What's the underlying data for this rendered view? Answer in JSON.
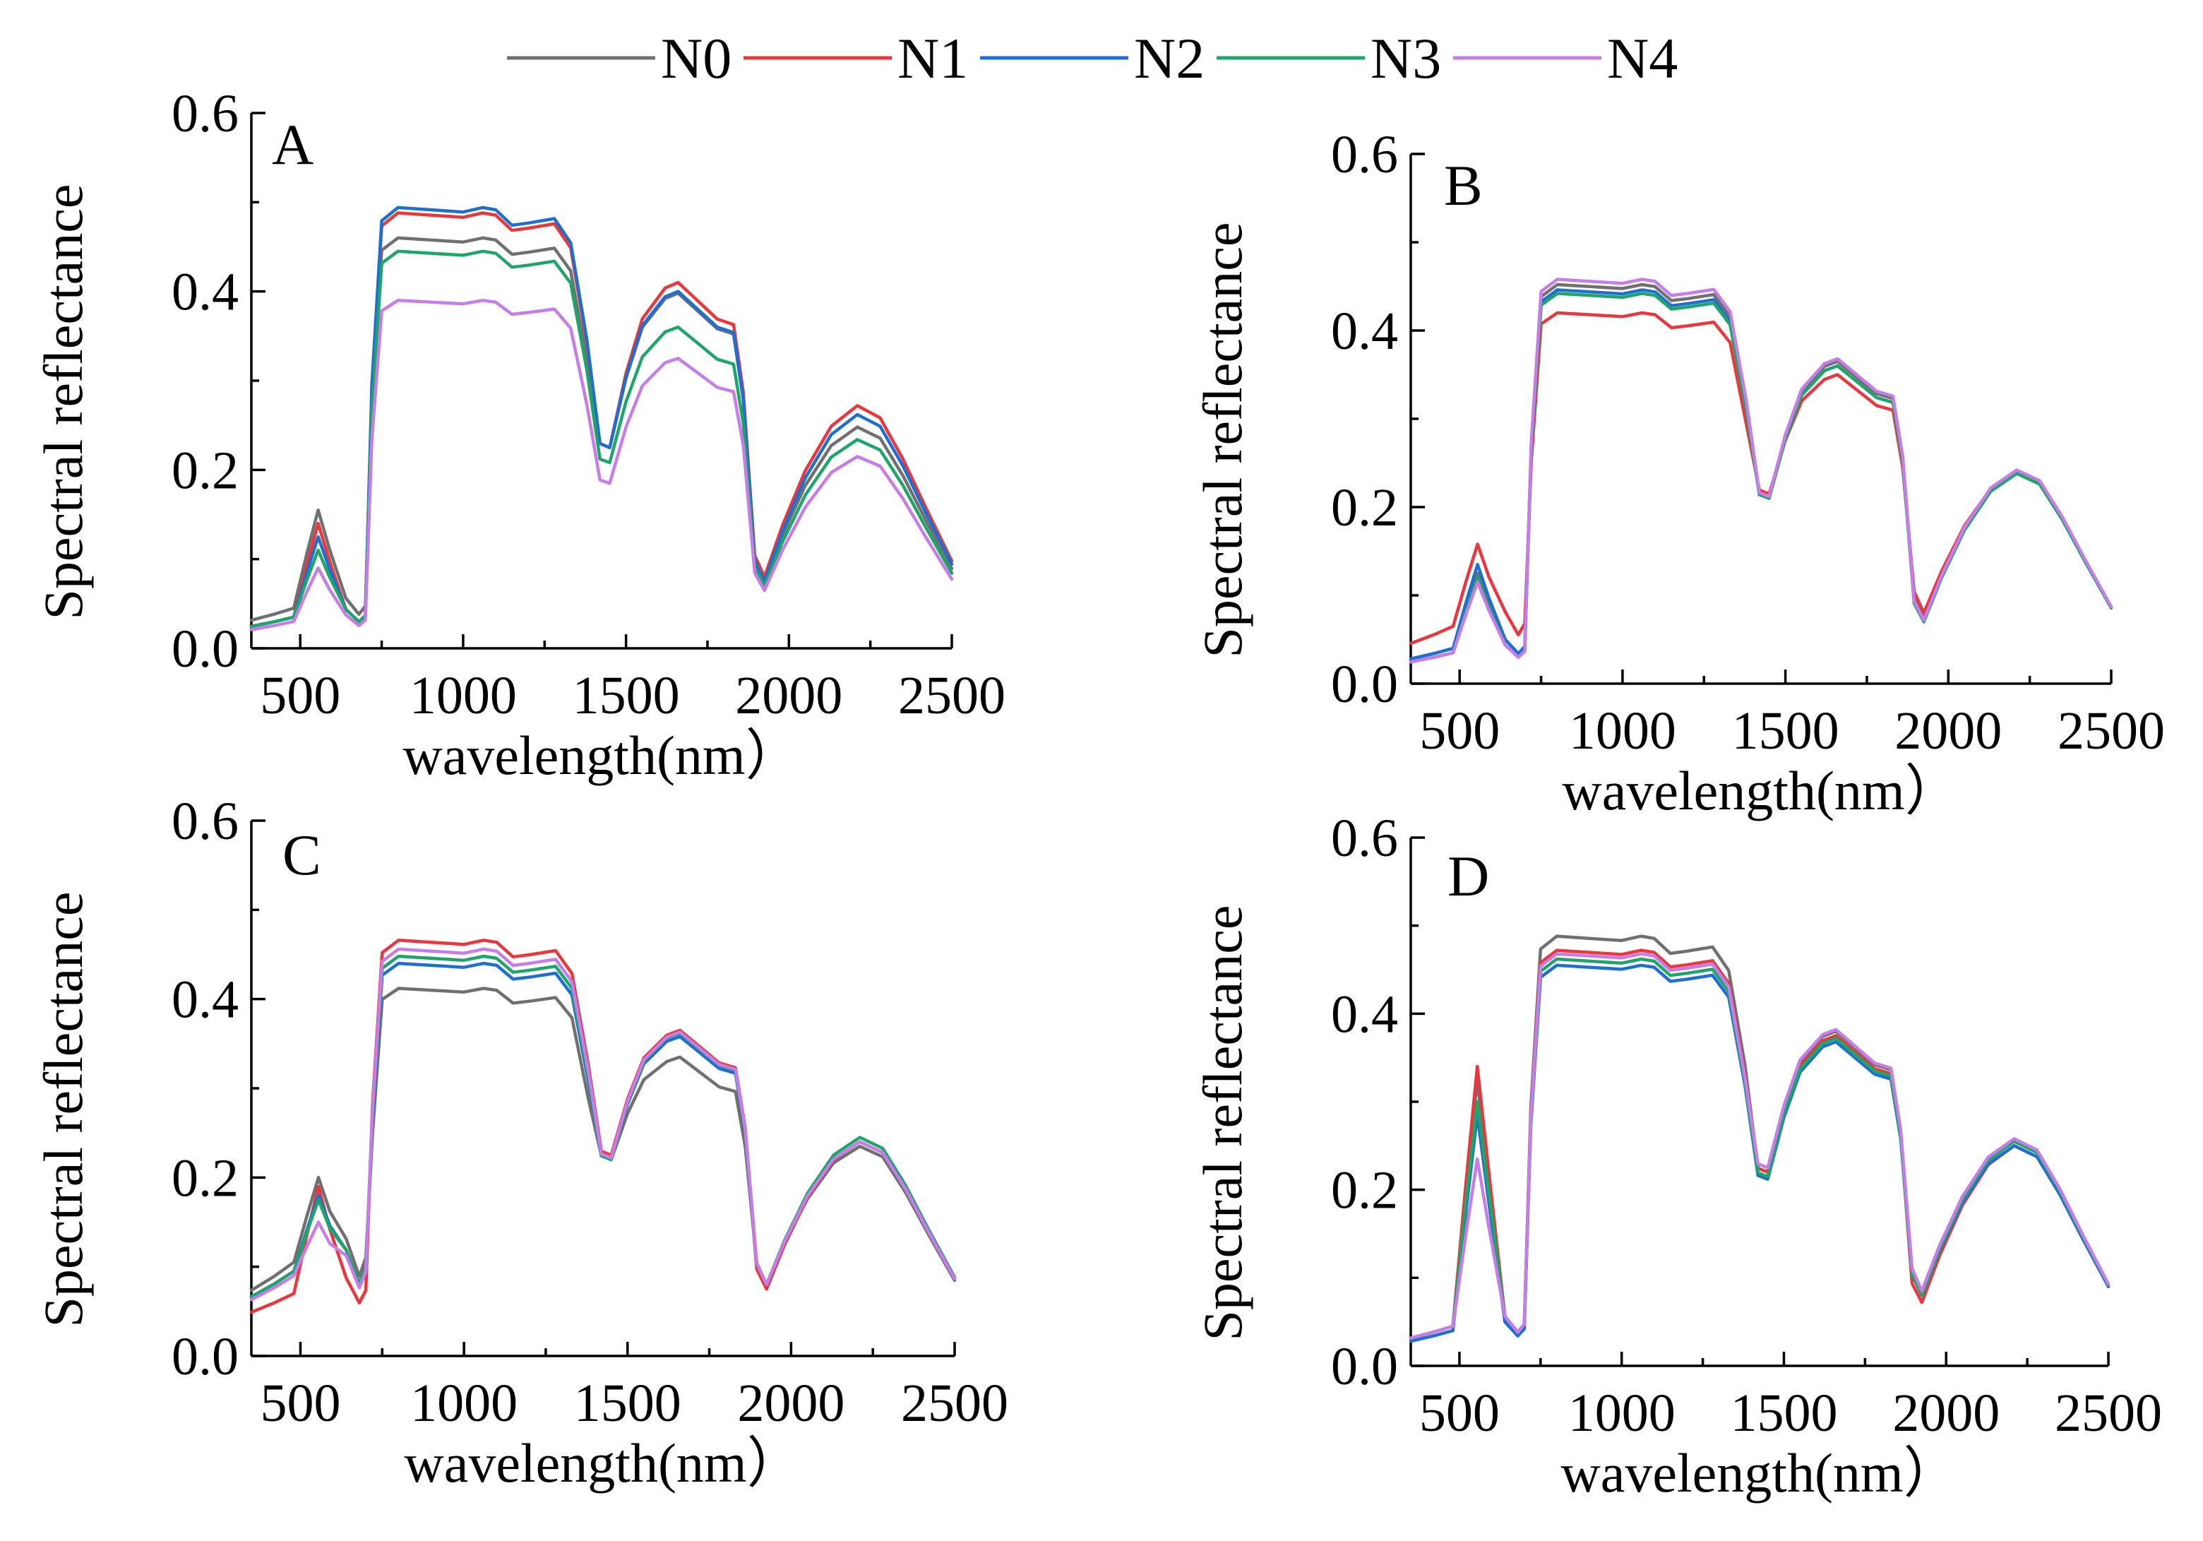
{
  "chart_data": {
    "type": "line",
    "legend": [
      {
        "name": "N0",
        "color": "#707070"
      },
      {
        "name": "N1",
        "color": "#e8383d"
      },
      {
        "name": "N2",
        "color": "#1f6fd0"
      },
      {
        "name": "N3",
        "color": "#1fa46a"
      },
      {
        "name": "N4",
        "color": "#c77de8"
      }
    ],
    "xlabel": "wavelength(nm）",
    "ylabel": "Spectral reflectance",
    "xlim": [
      350,
      2500
    ],
    "ylim": [
      0,
      0.6
    ],
    "xticks": [
      500,
      1000,
      1500,
      2000,
      2500
    ],
    "yticks": [
      0.0,
      0.2,
      0.4,
      0.6
    ],
    "ytick_labels": [
      "0.0",
      "0.2",
      "0.4",
      "0.6"
    ],
    "panels": [
      {
        "label": "A",
        "series": [
          {
            "name": "N0",
            "plateau": 0.46,
            "green": 0.155,
            "visible": 0.045,
            "swir1": 0.398,
            "swir2": 0.248,
            "trough1": 0.225,
            "trough2": 0.075
          },
          {
            "name": "N1",
            "plateau": 0.488,
            "green": 0.14,
            "visible": 0.035,
            "swir1": 0.41,
            "swir2": 0.272,
            "trough1": 0.225,
            "trough2": 0.08
          },
          {
            "name": "N2",
            "plateau": 0.494,
            "green": 0.125,
            "visible": 0.035,
            "swir1": 0.4,
            "swir2": 0.262,
            "trough1": 0.225,
            "trough2": 0.075
          },
          {
            "name": "N3",
            "plateau": 0.445,
            "green": 0.11,
            "visible": 0.035,
            "swir1": 0.36,
            "swir2": 0.234,
            "trough1": 0.208,
            "trough2": 0.07
          },
          {
            "name": "N4",
            "plateau": 0.39,
            "green": 0.09,
            "visible": 0.03,
            "swir1": 0.325,
            "swir2": 0.215,
            "trough1": 0.185,
            "trough2": 0.065
          }
        ]
      },
      {
        "label": "B",
        "series": [
          {
            "name": "N0",
            "plateau": 0.452,
            "green": 0.125,
            "visible": 0.04,
            "swir1": 0.365,
            "swir2": 0.24,
            "trough1": 0.21,
            "trough2": 0.075
          },
          {
            "name": "N1",
            "plateau": 0.42,
            "green": 0.158,
            "visible": 0.065,
            "swir1": 0.35,
            "swir2": 0.24,
            "trough1": 0.215,
            "trough2": 0.08
          },
          {
            "name": "N2",
            "plateau": 0.446,
            "green": 0.135,
            "visible": 0.04,
            "swir1": 0.36,
            "swir2": 0.24,
            "trough1": 0.21,
            "trough2": 0.072
          },
          {
            "name": "N3",
            "plateau": 0.442,
            "green": 0.12,
            "visible": 0.035,
            "swir1": 0.36,
            "swir2": 0.238,
            "trough1": 0.21,
            "trough2": 0.07
          },
          {
            "name": "N4",
            "plateau": 0.458,
            "green": 0.115,
            "visible": 0.035,
            "swir1": 0.368,
            "swir2": 0.242,
            "trough1": 0.212,
            "trough2": 0.072
          }
        ]
      },
      {
        "label": "C",
        "series": [
          {
            "name": "N0",
            "plateau": 0.412,
            "green": 0.2,
            "visible": 0.105,
            "swir1": 0.335,
            "swir2": 0.235,
            "trough1": 0.22,
            "trough2": 0.08
          },
          {
            "name": "N1",
            "plateau": 0.466,
            "green": 0.19,
            "visible": 0.07,
            "swir1": 0.365,
            "swir2": 0.24,
            "trough1": 0.225,
            "trough2": 0.075
          },
          {
            "name": "N2",
            "plateau": 0.44,
            "green": 0.18,
            "visible": 0.095,
            "swir1": 0.358,
            "swir2": 0.24,
            "trough1": 0.22,
            "trough2": 0.08
          },
          {
            "name": "N3",
            "plateau": 0.448,
            "green": 0.175,
            "visible": 0.095,
            "swir1": 0.362,
            "swir2": 0.245,
            "trough1": 0.22,
            "trough2": 0.08
          },
          {
            "name": "N4",
            "plateau": 0.456,
            "green": 0.15,
            "visible": 0.09,
            "swir1": 0.363,
            "swir2": 0.24,
            "trough1": 0.222,
            "trough2": 0.08
          }
        ]
      },
      {
        "label": "D",
        "series": [
          {
            "name": "N0",
            "plateau": 0.488,
            "green": 0.325,
            "visible": 0.045,
            "swir1": 0.38,
            "swir2": 0.255,
            "trough1": 0.22,
            "trough2": 0.08
          },
          {
            "name": "N1",
            "plateau": 0.472,
            "green": 0.34,
            "visible": 0.045,
            "swir1": 0.375,
            "swir2": 0.25,
            "trough1": 0.22,
            "trough2": 0.072
          },
          {
            "name": "N2",
            "plateau": 0.455,
            "green": 0.285,
            "visible": 0.04,
            "swir1": 0.368,
            "swir2": 0.25,
            "trough1": 0.212,
            "trough2": 0.08
          },
          {
            "name": "N3",
            "plateau": 0.462,
            "green": 0.3,
            "visible": 0.045,
            "swir1": 0.372,
            "swir2": 0.255,
            "trough1": 0.215,
            "trough2": 0.08
          },
          {
            "name": "N4",
            "plateau": 0.468,
            "green": 0.235,
            "visible": 0.045,
            "swir1": 0.382,
            "swir2": 0.258,
            "trough1": 0.225,
            "trough2": 0.085
          }
        ]
      }
    ]
  }
}
